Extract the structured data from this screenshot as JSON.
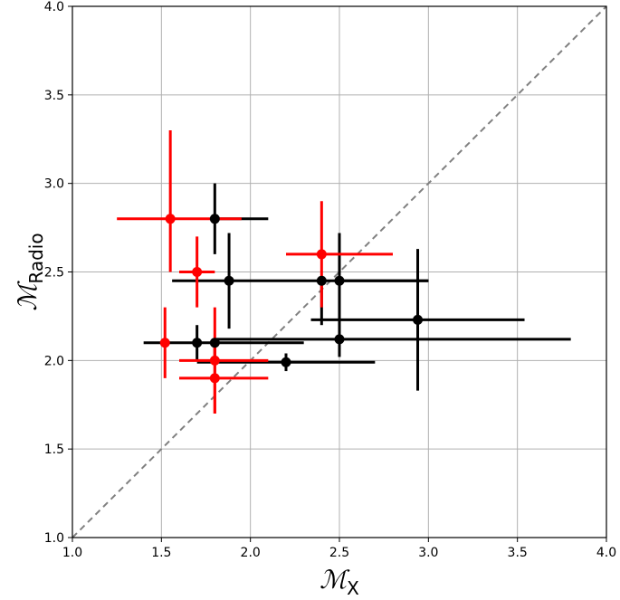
{
  "chart_data": {
    "type": "scatter",
    "title": "",
    "xlabel": {
      "main": "ℳ",
      "sub": "X"
    },
    "ylabel": {
      "main": "ℳ",
      "sub": "Radio"
    },
    "xlim": [
      1.0,
      4.0
    ],
    "ylim": [
      1.0,
      4.0
    ],
    "xticks": [
      "1.0",
      "1.5",
      "2.0",
      "2.5",
      "3.0",
      "3.5",
      "4.0"
    ],
    "yticks": [
      "1.0",
      "1.5",
      "2.0",
      "2.5",
      "3.0",
      "3.5",
      "4.0"
    ],
    "grid": true,
    "reference_line": {
      "from": [
        1.0,
        1.0
      ],
      "to": [
        4.0,
        4.0
      ],
      "style": "dashed",
      "color": "#808080"
    },
    "series": [
      {
        "color": "#000000",
        "points": [
          {
            "x": 1.8,
            "y": 2.8,
            "xerr": [
              0.0,
              0.3
            ],
            "yerr": [
              0.2,
              0.2
            ]
          },
          {
            "x": 1.88,
            "y": 2.45,
            "xerr": [
              0.32,
              1.12
            ],
            "yerr": [
              0.27,
              0.27
            ]
          },
          {
            "x": 2.4,
            "y": 2.45,
            "xerr": [
              0.0,
              0.0
            ],
            "yerr": [
              0.25,
              0.0
            ]
          },
          {
            "x": 2.5,
            "y": 2.45,
            "xerr": [
              0.0,
              0.5
            ],
            "yerr": [
              0.27,
              0.27
            ]
          },
          {
            "x": 2.94,
            "y": 2.23,
            "xerr": [
              0.6,
              0.6
            ],
            "yerr": [
              0.4,
              0.4
            ]
          },
          {
            "x": 1.7,
            "y": 2.1,
            "xerr": [
              0.3,
              0.6
            ],
            "yerr": [
              0.1,
              0.1
            ]
          },
          {
            "x": 1.8,
            "y": 2.1,
            "xerr": [
              0.0,
              0.0
            ],
            "yerr": [
              0.1,
              0.0
            ]
          },
          {
            "x": 2.5,
            "y": 2.12,
            "xerr": [
              0.7,
              1.3
            ],
            "yerr": [
              0.1,
              0.1
            ]
          },
          {
            "x": 2.2,
            "y": 1.99,
            "xerr": [
              0.5,
              0.5
            ],
            "yerr": [
              0.05,
              0.05
            ]
          }
        ]
      },
      {
        "color": "#ff0000",
        "points": [
          {
            "x": 1.55,
            "y": 2.8,
            "xerr": [
              0.3,
              0.4
            ],
            "yerr": [
              0.3,
              0.5
            ]
          },
          {
            "x": 1.7,
            "y": 2.5,
            "xerr": [
              0.1,
              0.1
            ],
            "yerr": [
              0.2,
              0.2
            ]
          },
          {
            "x": 2.4,
            "y": 2.6,
            "xerr": [
              0.2,
              0.4
            ],
            "yerr": [
              0.3,
              0.3
            ]
          },
          {
            "x": 1.52,
            "y": 2.1,
            "xerr": [
              0.0,
              0.0
            ],
            "yerr": [
              0.2,
              0.2
            ]
          },
          {
            "x": 1.8,
            "y": 2.0,
            "xerr": [
              0.2,
              0.3
            ],
            "yerr": [
              0.3,
              0.3
            ]
          },
          {
            "x": 1.8,
            "y": 1.9,
            "xerr": [
              0.2,
              0.3
            ],
            "yerr": [
              0.2,
              0.2
            ]
          }
        ]
      }
    ]
  }
}
